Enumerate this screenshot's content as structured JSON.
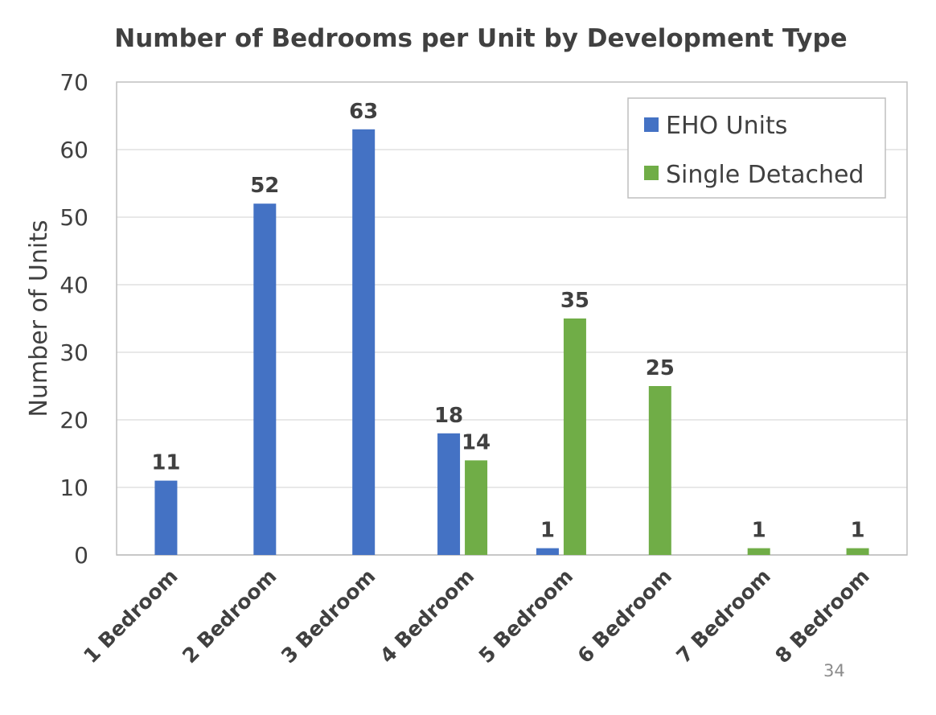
{
  "chart_data": {
    "type": "bar",
    "title": "Number of Bedrooms per Unit by Development Type",
    "ylabel": "Number of Units",
    "xlabel": "",
    "categories": [
      "1 Bedroom",
      "2 Bedroom",
      "3 Bedroom",
      "4 Bedroom",
      "5 Bedroom",
      "6 Bedroom",
      "7 Bedroom",
      "8 Bedroom"
    ],
    "series": [
      {
        "name": "EHO Units",
        "color": "#4472C4",
        "values": [
          11,
          52,
          63,
          18,
          1,
          null,
          null,
          null
        ]
      },
      {
        "name": "Single Detached",
        "color": "#70AD47",
        "values": [
          null,
          null,
          null,
          14,
          35,
          25,
          1,
          1
        ]
      }
    ],
    "ylim": [
      0,
      70
    ],
    "yticks": [
      0,
      10,
      20,
      30,
      40,
      50,
      60,
      70
    ],
    "grid": true,
    "legend_position": "top-right"
  },
  "page_number": "34"
}
